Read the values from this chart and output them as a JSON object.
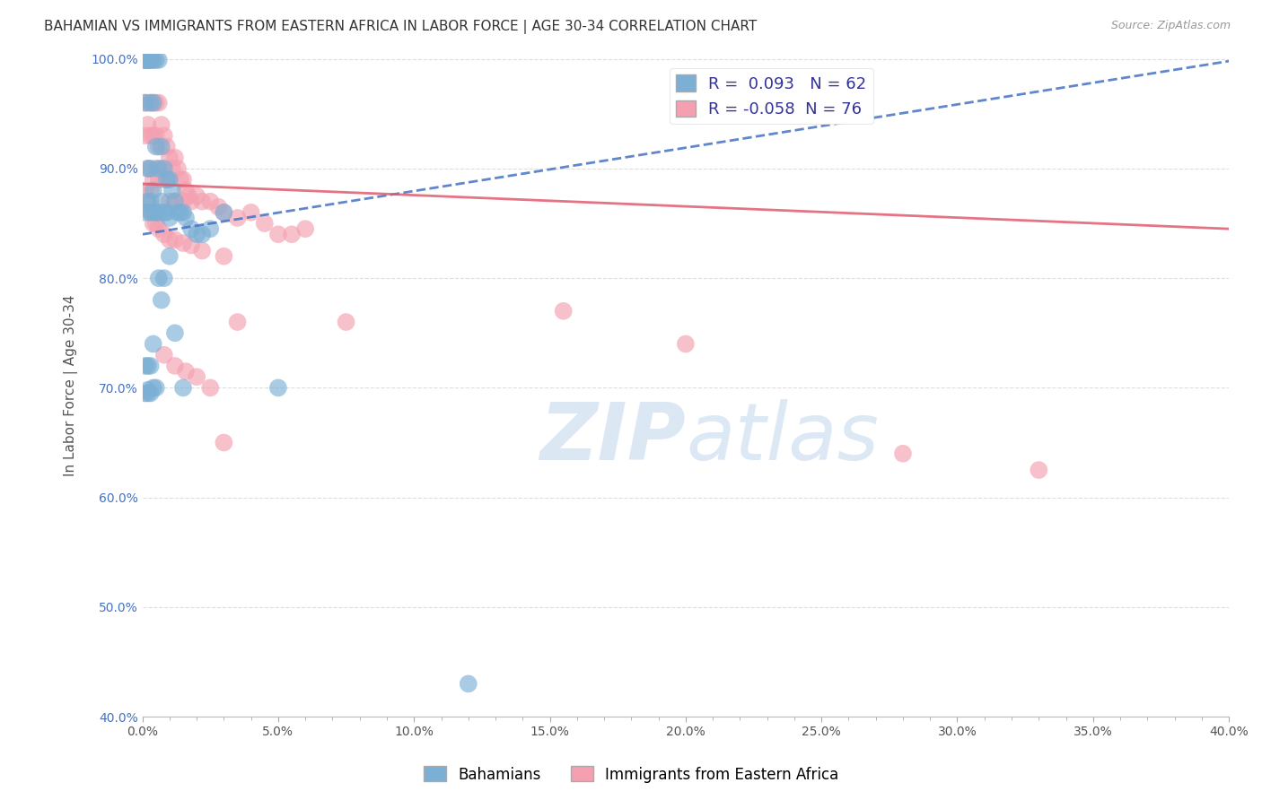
{
  "title": "BAHAMIAN VS IMMIGRANTS FROM EASTERN AFRICA IN LABOR FORCE | AGE 30-34 CORRELATION CHART",
  "source": "Source: ZipAtlas.com",
  "xlabel": "",
  "ylabel": "In Labor Force | Age 30-34",
  "xlim": [
    0.0,
    0.4
  ],
  "ylim": [
    0.4,
    1.005
  ],
  "xtick_labels": [
    "0.0%",
    "",
    "",
    "",
    "",
    "5.0%",
    "",
    "",
    "",
    "",
    "10.0%",
    "",
    "",
    "",
    "",
    "15.0%",
    "",
    "",
    "",
    "",
    "20.0%",
    "",
    "",
    "",
    "",
    "25.0%",
    "",
    "",
    "",
    "",
    "30.0%",
    "",
    "",
    "",
    "",
    "35.0%",
    "",
    "",
    "",
    "",
    "40.0%"
  ],
  "xtick_vals": [
    0.0,
    0.01,
    0.02,
    0.03,
    0.04,
    0.05,
    0.06,
    0.07,
    0.08,
    0.09,
    0.1,
    0.11,
    0.12,
    0.13,
    0.14,
    0.15,
    0.16,
    0.17,
    0.18,
    0.19,
    0.2,
    0.21,
    0.22,
    0.23,
    0.24,
    0.25,
    0.26,
    0.27,
    0.28,
    0.29,
    0.3,
    0.31,
    0.32,
    0.33,
    0.34,
    0.35,
    0.36,
    0.37,
    0.38,
    0.39,
    0.4
  ],
  "ytick_labels": [
    "40.0%",
    "50.0%",
    "60.0%",
    "70.0%",
    "80.0%",
    "90.0%",
    "100.0%"
  ],
  "ytick_vals": [
    0.4,
    0.5,
    0.6,
    0.7,
    0.8,
    0.9,
    1.0
  ],
  "blue_color": "#7bafd4",
  "pink_color": "#f4a0b0",
  "blue_line_color": "#4472c4",
  "pink_line_color": "#e05a6e",
  "R_blue": 0.093,
  "N_blue": 62,
  "R_pink": -0.058,
  "N_pink": 76,
  "blue_x": [
    0.001,
    0.001,
    0.001,
    0.001,
    0.001,
    0.002,
    0.002,
    0.002,
    0.002,
    0.002,
    0.003,
    0.003,
    0.003,
    0.003,
    0.003,
    0.004,
    0.004,
    0.004,
    0.004,
    0.005,
    0.005,
    0.005,
    0.006,
    0.006,
    0.006,
    0.007,
    0.007,
    0.008,
    0.008,
    0.009,
    0.009,
    0.01,
    0.01,
    0.011,
    0.012,
    0.013,
    0.014,
    0.015,
    0.016,
    0.018,
    0.02,
    0.022,
    0.025,
    0.03,
    0.001,
    0.001,
    0.002,
    0.002,
    0.002,
    0.003,
    0.003,
    0.004,
    0.004,
    0.005,
    0.006,
    0.007,
    0.008,
    0.01,
    0.012,
    0.015,
    0.05,
    0.12
  ],
  "blue_y": [
    0.999,
    0.999,
    0.999,
    0.96,
    0.86,
    0.999,
    0.999,
    0.999,
    0.9,
    0.87,
    0.999,
    0.96,
    0.9,
    0.87,
    0.86,
    0.999,
    0.96,
    0.88,
    0.86,
    0.999,
    0.92,
    0.86,
    0.999,
    0.9,
    0.86,
    0.92,
    0.87,
    0.9,
    0.86,
    0.89,
    0.86,
    0.89,
    0.855,
    0.88,
    0.87,
    0.86,
    0.86,
    0.86,
    0.855,
    0.845,
    0.84,
    0.84,
    0.845,
    0.86,
    0.72,
    0.695,
    0.695,
    0.698,
    0.72,
    0.695,
    0.72,
    0.74,
    0.7,
    0.7,
    0.8,
    0.78,
    0.8,
    0.82,
    0.75,
    0.7,
    0.7,
    0.43
  ],
  "pink_x": [
    0.001,
    0.001,
    0.001,
    0.001,
    0.001,
    0.002,
    0.002,
    0.002,
    0.002,
    0.002,
    0.003,
    0.003,
    0.003,
    0.003,
    0.004,
    0.004,
    0.004,
    0.004,
    0.005,
    0.005,
    0.005,
    0.006,
    0.006,
    0.006,
    0.007,
    0.007,
    0.008,
    0.008,
    0.009,
    0.009,
    0.01,
    0.01,
    0.011,
    0.012,
    0.012,
    0.013,
    0.014,
    0.015,
    0.015,
    0.016,
    0.017,
    0.018,
    0.02,
    0.022,
    0.025,
    0.028,
    0.03,
    0.035,
    0.04,
    0.045,
    0.05,
    0.055,
    0.06,
    0.075,
    0.003,
    0.004,
    0.005,
    0.006,
    0.008,
    0.01,
    0.012,
    0.015,
    0.018,
    0.022,
    0.03,
    0.035,
    0.008,
    0.012,
    0.016,
    0.02,
    0.025,
    0.03,
    0.155,
    0.2,
    0.28,
    0.33
  ],
  "pink_y": [
    0.999,
    0.999,
    0.96,
    0.93,
    0.88,
    0.999,
    0.96,
    0.94,
    0.9,
    0.87,
    0.999,
    0.96,
    0.93,
    0.88,
    0.999,
    0.96,
    0.93,
    0.89,
    0.96,
    0.93,
    0.9,
    0.96,
    0.92,
    0.89,
    0.94,
    0.9,
    0.93,
    0.89,
    0.92,
    0.89,
    0.91,
    0.87,
    0.9,
    0.91,
    0.87,
    0.9,
    0.89,
    0.89,
    0.87,
    0.88,
    0.875,
    0.87,
    0.875,
    0.87,
    0.87,
    0.865,
    0.86,
    0.855,
    0.86,
    0.85,
    0.84,
    0.84,
    0.845,
    0.76,
    0.86,
    0.85,
    0.85,
    0.845,
    0.84,
    0.835,
    0.835,
    0.832,
    0.83,
    0.825,
    0.82,
    0.76,
    0.73,
    0.72,
    0.715,
    0.71,
    0.7,
    0.65,
    0.77,
    0.74,
    0.64,
    0.625
  ],
  "blue_trend": [
    0.0,
    0.4,
    0.84,
    0.998
  ],
  "pink_trend": [
    0.0,
    0.4,
    0.886,
    0.845
  ],
  "watermark_zip": "ZIP",
  "watermark_atlas": "atlas",
  "background_color": "#ffffff",
  "grid_color": "#dddddd"
}
